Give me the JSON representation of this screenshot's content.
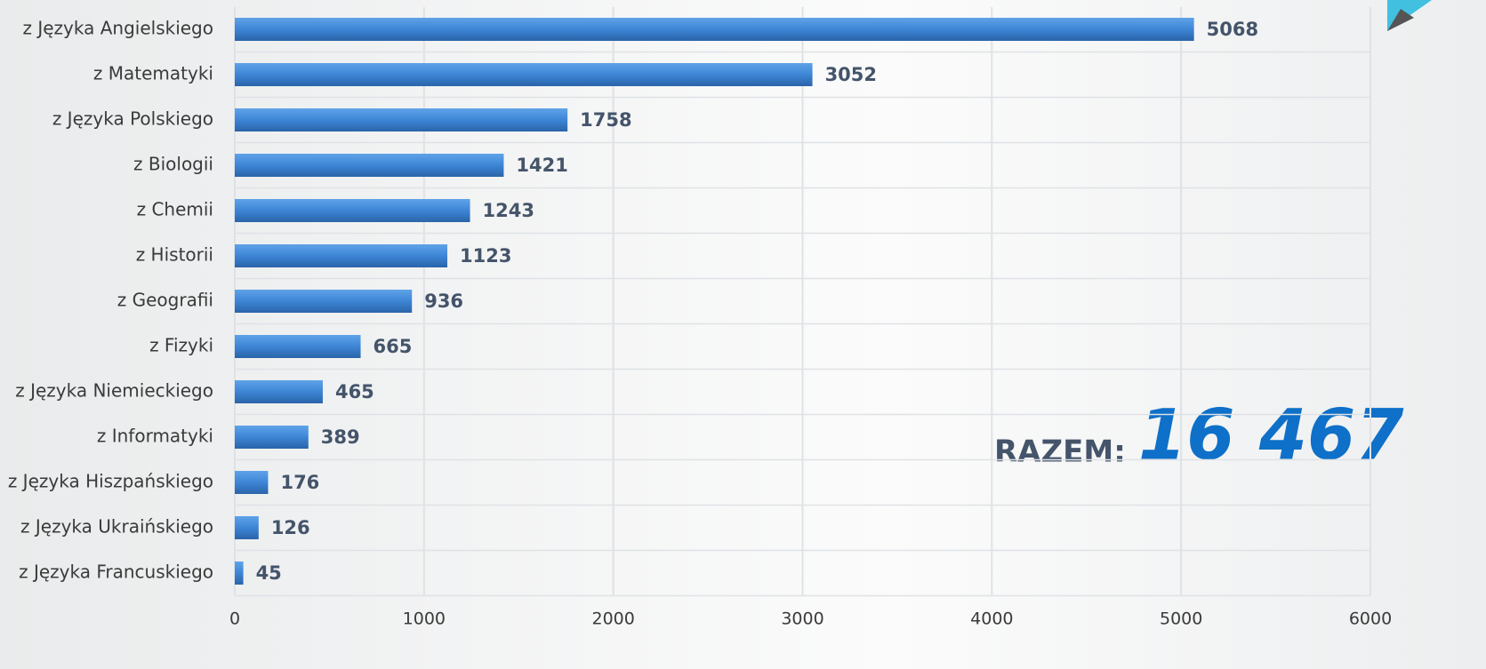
{
  "chart_data": {
    "type": "bar",
    "orientation": "horizontal",
    "categories": [
      "z Języka Angielskiego",
      "z Matematyki",
      "z Języka Polskiego",
      "z Biologii",
      "z Chemii",
      "z Historii",
      "z Geografii",
      "z Fizyki",
      "z Języka Niemieckiego",
      "z Informatyki",
      "z Języka Hiszpańskiego",
      "z Języka Ukraińskiego",
      "z Języka Francuskiego"
    ],
    "values": [
      5068,
      3052,
      1758,
      1421,
      1243,
      1123,
      936,
      665,
      465,
      389,
      176,
      126,
      45
    ],
    "color": "#3d85d6",
    "xlim": [
      0,
      6000
    ],
    "xticks": [
      0,
      1000,
      2000,
      3000,
      4000,
      5000,
      6000
    ],
    "grid": true,
    "annotation": {
      "label": "RAZEM:",
      "total": "16 467"
    }
  }
}
